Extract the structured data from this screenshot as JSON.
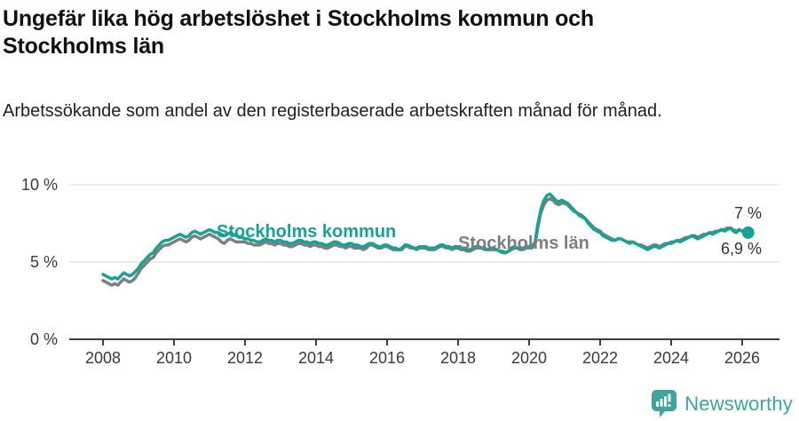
{
  "header": {
    "title": "Ungefär lika hög arbetslöshet i Stockholms kommun och Stockholms län",
    "subtitle": "Arbetssökande som andel av den registerbaserade arbetskraften månad för månad."
  },
  "chart_data": {
    "type": "line",
    "title": "Ungefär lika hög arbetslöshet i Stockholms kommun och Stockholms län",
    "subtitle": "Arbetssökande som andel av den registerbaserade arbetskraften månad för månad.",
    "unit": "%",
    "x_start_year": 2008,
    "x_step_months": 1,
    "x_end": "2026-03",
    "x_ticks": [
      2008,
      2010,
      2012,
      2014,
      2016,
      2018,
      2020,
      2022,
      2024,
      2026
    ],
    "y_ticks": [
      {
        "value": 0,
        "label": "0 %"
      },
      {
        "value": 5,
        "label": "5 %"
      },
      {
        "value": 10,
        "label": "10 %"
      }
    ],
    "ylim": [
      0,
      10.8
    ],
    "grid": "horizontal-only",
    "axis_color": "#3d3d3d",
    "gridline_color": "#e0e0e0",
    "series": [
      {
        "name": "Stockholms kommun",
        "color": "#17a295",
        "end_label": "6,9 %",
        "end_value": 6.9,
        "end_dot": true,
        "values": [
          4.2,
          4.1,
          4.0,
          3.9,
          4.0,
          3.9,
          4.1,
          4.3,
          4.2,
          4.1,
          4.2,
          4.4,
          4.6,
          4.9,
          5.1,
          5.3,
          5.5,
          5.6,
          5.9,
          6.1,
          6.3,
          6.4,
          6.4,
          6.5,
          6.6,
          6.7,
          6.8,
          6.7,
          6.6,
          6.7,
          6.9,
          7.0,
          6.9,
          6.8,
          6.9,
          7.0,
          7.1,
          7.0,
          6.9,
          6.9,
          6.8,
          6.7,
          6.8,
          6.9,
          6.8,
          6.7,
          6.6,
          6.6,
          6.5,
          6.5,
          6.4,
          6.4,
          6.3,
          6.3,
          6.4,
          6.5,
          6.4,
          6.4,
          6.3,
          6.4,
          6.4,
          6.3,
          6.3,
          6.2,
          6.2,
          6.3,
          6.4,
          6.4,
          6.3,
          6.3,
          6.2,
          6.3,
          6.3,
          6.2,
          6.2,
          6.1,
          6.1,
          6.2,
          6.3,
          6.3,
          6.2,
          6.1,
          6.1,
          6.2,
          6.2,
          6.1,
          6.1,
          6.0,
          6.0,
          6.1,
          6.2,
          6.2,
          6.1,
          6.0,
          6.0,
          6.1,
          6.1,
          6.0,
          5.9,
          5.9,
          5.8,
          5.9,
          6.1,
          6.1,
          6.0,
          5.9,
          5.9,
          6.0,
          6.0,
          6.0,
          5.9,
          5.9,
          5.9,
          6.0,
          6.1,
          6.1,
          6.0,
          6.0,
          5.9,
          6.0,
          6.0,
          5.9,
          5.9,
          5.8,
          5.8,
          5.9,
          6.0,
          6.0,
          5.9,
          5.9,
          5.8,
          5.9,
          5.9,
          5.8,
          5.7,
          5.7,
          5.6,
          5.7,
          5.9,
          6.0,
          5.9,
          5.9,
          5.9,
          6.0,
          6.0,
          6.0,
          6.3,
          7.5,
          8.4,
          9.0,
          9.3,
          9.4,
          9.2,
          9.0,
          8.9,
          9.0,
          8.9,
          8.8,
          8.6,
          8.4,
          8.2,
          8.0,
          7.9,
          7.8,
          7.5,
          7.3,
          7.1,
          7.0,
          6.9,
          6.7,
          6.6,
          6.5,
          6.4,
          6.4,
          6.5,
          6.5,
          6.4,
          6.3,
          6.2,
          6.3,
          6.2,
          6.1,
          6.0,
          5.9,
          5.8,
          5.9,
          6.0,
          6.0,
          5.9,
          6.0,
          6.1,
          6.2,
          6.2,
          6.3,
          6.4,
          6.3,
          6.4,
          6.5,
          6.6,
          6.7,
          6.6,
          6.5,
          6.6,
          6.7,
          6.8,
          6.9,
          6.8,
          6.9,
          7.0,
          7.1,
          7.0,
          7.1,
          7.2,
          7.0,
          6.9,
          7.1,
          7.0,
          6.9,
          6.9
        ]
      },
      {
        "name": "Stockholms län",
        "color": "#7e7e7e",
        "end_label": "7 %",
        "end_value": 7.0,
        "end_dot": false,
        "values": [
          3.8,
          3.7,
          3.6,
          3.5,
          3.6,
          3.5,
          3.7,
          3.9,
          3.8,
          3.7,
          3.8,
          4.0,
          4.3,
          4.6,
          4.8,
          5.0,
          5.2,
          5.3,
          5.6,
          5.8,
          6.0,
          6.1,
          6.1,
          6.2,
          6.3,
          6.4,
          6.5,
          6.4,
          6.3,
          6.4,
          6.6,
          6.7,
          6.6,
          6.5,
          6.6,
          6.7,
          6.8,
          6.7,
          6.6,
          6.5,
          6.3,
          6.2,
          6.4,
          6.5,
          6.4,
          6.3,
          6.3,
          6.3,
          6.3,
          6.2,
          6.2,
          6.1,
          6.1,
          6.1,
          6.2,
          6.3,
          6.2,
          6.2,
          6.1,
          6.2,
          6.2,
          6.1,
          6.1,
          6.0,
          6.0,
          6.1,
          6.2,
          6.2,
          6.1,
          6.1,
          6.0,
          6.1,
          6.1,
          6.0,
          6.0,
          5.9,
          5.9,
          6.0,
          6.1,
          6.1,
          6.0,
          6.0,
          5.9,
          6.0,
          6.0,
          5.9,
          5.9,
          5.9,
          5.8,
          5.9,
          6.1,
          6.1,
          6.0,
          5.9,
          5.9,
          6.0,
          6.0,
          5.9,
          5.8,
          5.8,
          5.8,
          5.8,
          6.0,
          6.0,
          5.9,
          5.9,
          5.8,
          5.9,
          5.9,
          5.9,
          5.8,
          5.8,
          5.8,
          5.9,
          6.0,
          6.0,
          5.9,
          5.9,
          5.8,
          5.9,
          5.9,
          5.8,
          5.8,
          5.7,
          5.7,
          5.8,
          5.9,
          5.9,
          5.9,
          5.8,
          5.8,
          5.8,
          5.8,
          5.8,
          5.7,
          5.6,
          5.6,
          5.7,
          5.8,
          5.9,
          5.9,
          5.8,
          5.8,
          5.9,
          5.9,
          5.9,
          6.2,
          7.3,
          8.2,
          8.7,
          9.0,
          9.1,
          9.0,
          8.8,
          8.7,
          8.8,
          8.8,
          8.7,
          8.5,
          8.3,
          8.2,
          8.1,
          8.0,
          7.8,
          7.6,
          7.4,
          7.2,
          7.1,
          7.0,
          6.8,
          6.7,
          6.6,
          6.5,
          6.4,
          6.5,
          6.5,
          6.4,
          6.3,
          6.3,
          6.3,
          6.2,
          6.1,
          6.1,
          6.0,
          5.9,
          6.0,
          6.1,
          6.1,
          6.0,
          6.1,
          6.2,
          6.2,
          6.3,
          6.3,
          6.4,
          6.4,
          6.5,
          6.6,
          6.6,
          6.7,
          6.7,
          6.6,
          6.7,
          6.8,
          6.8,
          6.9,
          6.9,
          7.0,
          7.0,
          7.1,
          7.1,
          7.2,
          7.2,
          7.1,
          7.0,
          7.1,
          7.0,
          7.0,
          7.0
        ]
      }
    ]
  },
  "footer": {
    "brand": "Newsworthy",
    "brand_color": "#3ea49d",
    "logo_icon": "bar-chart-badge-icon"
  }
}
